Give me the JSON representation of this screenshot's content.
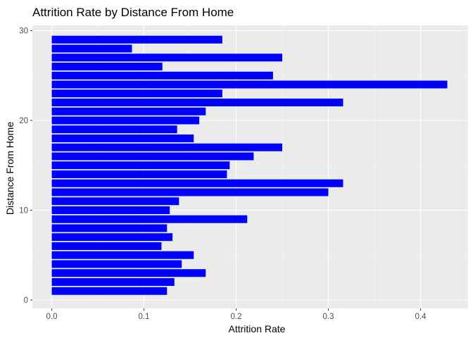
{
  "chart_data": {
    "type": "bar",
    "orientation": "horizontal",
    "title": "Attrition Rate by Distance From Home",
    "xlabel": "Attrition Rate",
    "ylabel": "Distance From Home",
    "xlim": [
      0,
      0.45
    ],
    "ylim": [
      0,
      30
    ],
    "x_ticks": [
      "0.0",
      "0.1",
      "0.2",
      "0.3",
      "0.4"
    ],
    "x_tick_values": [
      0,
      0.1,
      0.2,
      0.3,
      0.4
    ],
    "y_ticks": [
      "0",
      "10",
      "20",
      "30"
    ],
    "y_tick_values": [
      0,
      10,
      20,
      30
    ],
    "grid": true,
    "legend": "none",
    "bar_color": "#0000FF",
    "panel_color": "#EBEBEB",
    "categories": [
      1,
      2,
      3,
      4,
      5,
      6,
      7,
      8,
      9,
      10,
      11,
      12,
      13,
      14,
      15,
      16,
      17,
      18,
      19,
      20,
      21,
      22,
      23,
      24,
      25,
      26,
      27,
      28,
      29
    ],
    "values": [
      0.125,
      0.133,
      0.167,
      0.141,
      0.154,
      0.119,
      0.131,
      0.125,
      0.212,
      0.128,
      0.138,
      0.3,
      0.316,
      0.19,
      0.193,
      0.219,
      0.25,
      0.154,
      0.136,
      0.16,
      0.167,
      0.316,
      0.185,
      0.429,
      0.24,
      0.12,
      0.25,
      0.087,
      0.185
    ]
  }
}
